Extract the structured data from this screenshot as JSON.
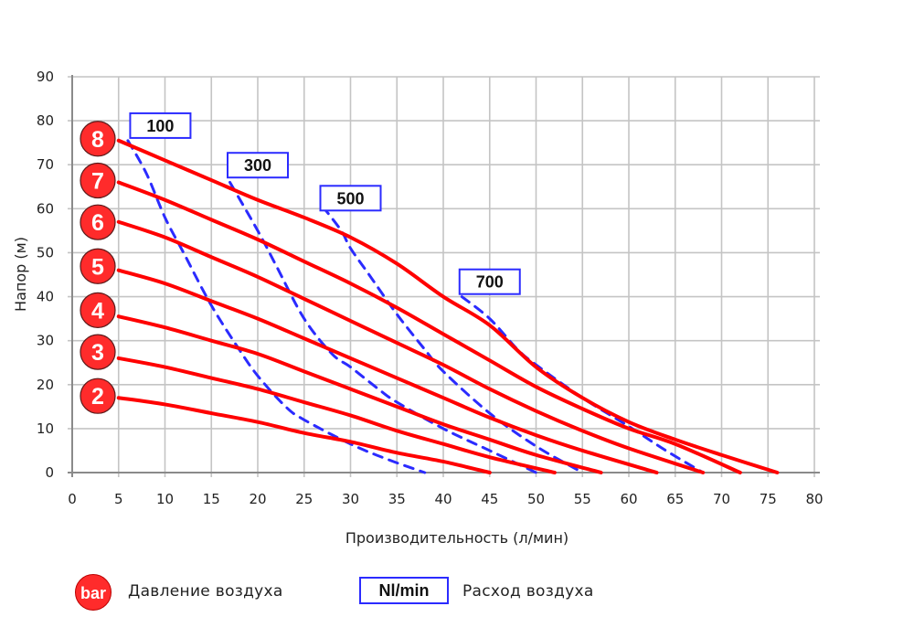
{
  "chart_data": {
    "type": "line",
    "title": "",
    "xlabel": "Производительность (л/мин)",
    "ylabel": "Напор (м)",
    "xlim": [
      0,
      80
    ],
    "ylim": [
      0,
      90
    ],
    "xticks": [
      0,
      5,
      10,
      15,
      20,
      25,
      30,
      35,
      40,
      45,
      50,
      55,
      60,
      65,
      70,
      75,
      80
    ],
    "yticks": [
      0,
      10,
      20,
      30,
      40,
      50,
      60,
      70,
      80,
      90
    ],
    "grid": true,
    "pressure_series": [
      {
        "name": "8",
        "unit": "bar",
        "color": "#ff0000",
        "points": [
          [
            5,
            75.5
          ],
          [
            10,
            71
          ],
          [
            15,
            66.5
          ],
          [
            20,
            62
          ],
          [
            25,
            58
          ],
          [
            30,
            53.5
          ],
          [
            35,
            47.5
          ],
          [
            40,
            40
          ],
          [
            45,
            33.5
          ],
          [
            50,
            24
          ],
          [
            55,
            17
          ],
          [
            60,
            11.5
          ],
          [
            65,
            7.5
          ],
          [
            70,
            4
          ],
          [
            76,
            0
          ]
        ]
      },
      {
        "name": "7",
        "unit": "bar",
        "color": "#ff0000",
        "points": [
          [
            5,
            66
          ],
          [
            10,
            62
          ],
          [
            15,
            57.5
          ],
          [
            20,
            53
          ],
          [
            25,
            48
          ],
          [
            30,
            43
          ],
          [
            35,
            37.5
          ],
          [
            40,
            31.5
          ],
          [
            45,
            25.5
          ],
          [
            50,
            19.5
          ],
          [
            55,
            14.5
          ],
          [
            60,
            10
          ],
          [
            65,
            6.5
          ],
          [
            72,
            0
          ]
        ]
      },
      {
        "name": "6",
        "unit": "bar",
        "color": "#ff0000",
        "points": [
          [
            5,
            57
          ],
          [
            10,
            53.5
          ],
          [
            15,
            49
          ],
          [
            20,
            44.5
          ],
          [
            25,
            39.5
          ],
          [
            30,
            34.5
          ],
          [
            35,
            29.5
          ],
          [
            40,
            24.5
          ],
          [
            45,
            19
          ],
          [
            50,
            14
          ],
          [
            55,
            9.5
          ],
          [
            60,
            5.5
          ],
          [
            68,
            0
          ]
        ]
      },
      {
        "name": "5",
        "unit": "bar",
        "color": "#ff0000",
        "points": [
          [
            5,
            46
          ],
          [
            10,
            43
          ],
          [
            15,
            39
          ],
          [
            20,
            35
          ],
          [
            25,
            30.5
          ],
          [
            30,
            26
          ],
          [
            35,
            21.5
          ],
          [
            40,
            17
          ],
          [
            45,
            12.5
          ],
          [
            50,
            8.5
          ],
          [
            55,
            5
          ],
          [
            63,
            0
          ]
        ]
      },
      {
        "name": "4",
        "unit": "bar",
        "color": "#ff0000",
        "points": [
          [
            5,
            35.5
          ],
          [
            10,
            33
          ],
          [
            15,
            30
          ],
          [
            20,
            27
          ],
          [
            25,
            23
          ],
          [
            30,
            19
          ],
          [
            35,
            15
          ],
          [
            40,
            11
          ],
          [
            45,
            7.5
          ],
          [
            50,
            4
          ],
          [
            57,
            0
          ]
        ]
      },
      {
        "name": "3",
        "unit": "bar",
        "color": "#ff0000",
        "points": [
          [
            5,
            26
          ],
          [
            10,
            24
          ],
          [
            15,
            21.5
          ],
          [
            20,
            19
          ],
          [
            25,
            16
          ],
          [
            30,
            13
          ],
          [
            35,
            9.5
          ],
          [
            40,
            6.5
          ],
          [
            45,
            3.5
          ],
          [
            52,
            0
          ]
        ]
      },
      {
        "name": "2",
        "unit": "bar",
        "color": "#ff0000",
        "points": [
          [
            5,
            17
          ],
          [
            10,
            15.5
          ],
          [
            15,
            13.5
          ],
          [
            20,
            11.5
          ],
          [
            25,
            9
          ],
          [
            30,
            7
          ],
          [
            35,
            4.5
          ],
          [
            40,
            2.5
          ],
          [
            45,
            0
          ]
        ]
      }
    ],
    "airflow_series": [
      {
        "name": "100",
        "unit": "Nl/min",
        "color": "#2b2bff",
        "points": [
          [
            6,
            75.5
          ],
          [
            8,
            68
          ],
          [
            10,
            58
          ],
          [
            12,
            50
          ],
          [
            15,
            38
          ],
          [
            18,
            28
          ],
          [
            20,
            22
          ],
          [
            23,
            15
          ],
          [
            25,
            12
          ],
          [
            30,
            6.5
          ],
          [
            34,
            3
          ],
          [
            38,
            0
          ]
        ]
      },
      {
        "name": "300",
        "unit": "Nl/min",
        "color": "#2b2bff",
        "points": [
          [
            17,
            66
          ],
          [
            20,
            55
          ],
          [
            22,
            47
          ],
          [
            25,
            35
          ],
          [
            28,
            27
          ],
          [
            30,
            24
          ],
          [
            33,
            19
          ],
          [
            35,
            16
          ],
          [
            40,
            10
          ],
          [
            45,
            5
          ],
          [
            50,
            0
          ]
        ]
      },
      {
        "name": "500",
        "unit": "Nl/min",
        "color": "#2b2bff",
        "points": [
          [
            27,
            60.5
          ],
          [
            29,
            55
          ],
          [
            30,
            51
          ],
          [
            32,
            45
          ],
          [
            35,
            36
          ],
          [
            38,
            28
          ],
          [
            40,
            23
          ],
          [
            45,
            13.5
          ],
          [
            50,
            6
          ],
          [
            55,
            0
          ]
        ]
      },
      {
        "name": "700",
        "unit": "Nl/min",
        "color": "#2b2bff",
        "points": [
          [
            42,
            40
          ],
          [
            45,
            35
          ],
          [
            48,
            28
          ],
          [
            50,
            24.5
          ],
          [
            55,
            17
          ],
          [
            60,
            10.5
          ],
          [
            64,
            5
          ],
          [
            68,
            0
          ]
        ]
      }
    ],
    "pressure_markers": [
      {
        "label": "8",
        "y": 75.5
      },
      {
        "label": "7",
        "y": 66
      },
      {
        "label": "6",
        "y": 56.5
      },
      {
        "label": "5",
        "y": 46.5
      },
      {
        "label": "4",
        "y": 36.5
      },
      {
        "label": "3",
        "y": 27
      },
      {
        "label": "2",
        "y": 17
      }
    ],
    "airflow_labels": [
      {
        "label": "100",
        "x": 9.5,
        "y": 79
      },
      {
        "label": "300",
        "x": 20,
        "y": 70
      },
      {
        "label": "500",
        "x": 30,
        "y": 62.5
      },
      {
        "label": "700",
        "x": 45,
        "y": 43.5
      }
    ],
    "legend": [
      {
        "icon": "bar",
        "text": "Давление воздуха"
      },
      {
        "icon": "Nl/min",
        "text": "Расход воздуха"
      }
    ]
  },
  "legend": {
    "pressure_icon": "bar",
    "pressure_text": "Давление воздуха",
    "airflow_icon": "Nl/min",
    "airflow_text": "Расход воздуха"
  }
}
